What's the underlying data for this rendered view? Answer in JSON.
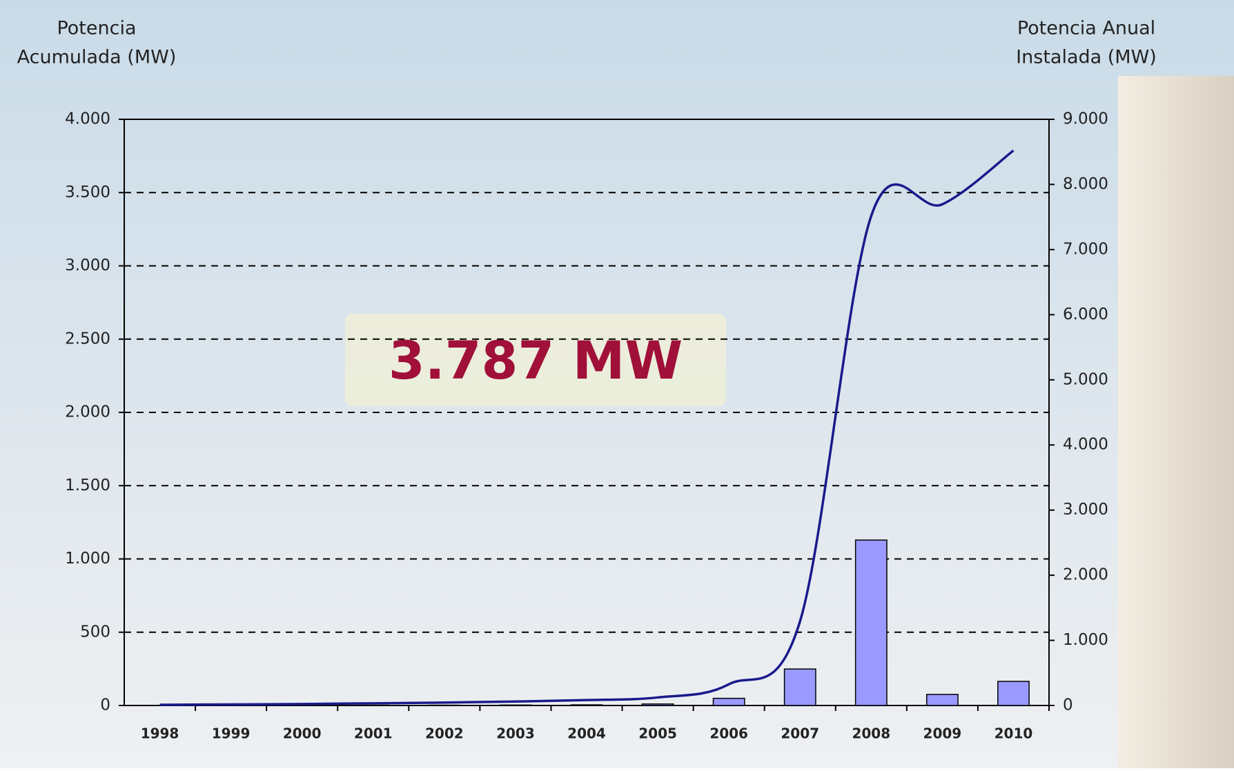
{
  "chart_data": {
    "type": "bar-line",
    "y_title": [
      "Potencia",
      "Acumulada (MW)"
    ],
    "y2_title": [
      "Potencia Anual",
      "Instalada (MW)"
    ],
    "annotation": "3.787 MW",
    "categories": [
      "1998",
      "1999",
      "2000",
      "2001",
      "2002",
      "2003",
      "2004",
      "2005",
      "2006",
      "2007",
      "2008",
      "2009",
      "2010"
    ],
    "series": [
      {
        "type": "line",
        "color": "#1a1a8c",
        "values": [
          5,
          7,
          10,
          15,
          20,
          27,
          37,
          55,
          145,
          575,
          3340,
          3420,
          3787
        ]
      },
      {
        "type": "bar",
        "axis": "y2",
        "color": "#9999ff",
        "values": [
          2,
          2,
          3,
          5,
          5,
          7,
          10,
          23,
          110,
          560,
          2540,
          170,
          370
        ]
      }
    ],
    "ylim": [
      0,
      4000
    ],
    "yticks": [
      0,
      {
        "value": 500,
        "label": "500"
      },
      {
        "value": 1000,
        "label": "1.000"
      },
      {
        "value": 1500,
        "label": "1.500"
      },
      {
        "value": 2000,
        "label": "2.000"
      },
      {
        "value": 2500,
        "label": "2.500"
      },
      {
        "value": 3000,
        "label": "3.000"
      },
      {
        "value": 3500,
        "label": "3.500"
      },
      {
        "value": 4000,
        "label": "4.000"
      }
    ],
    "y2lim": [
      0,
      9000
    ],
    "y2ticks": [
      0,
      {
        "value": 1000,
        "label": "1.000"
      },
      {
        "value": 2000,
        "label": "2.000"
      },
      {
        "value": 3000,
        "label": "3.000"
      },
      {
        "value": 4000,
        "label": "4.000"
      },
      {
        "value": 5000,
        "label": "5.000"
      },
      {
        "value": 6000,
        "label": "6.000"
      },
      {
        "value": 7000,
        "label": "7.000"
      },
      {
        "value": 8000,
        "label": "8.000"
      },
      {
        "value": 9000,
        "label": "9.000"
      }
    ],
    "grid": true
  }
}
